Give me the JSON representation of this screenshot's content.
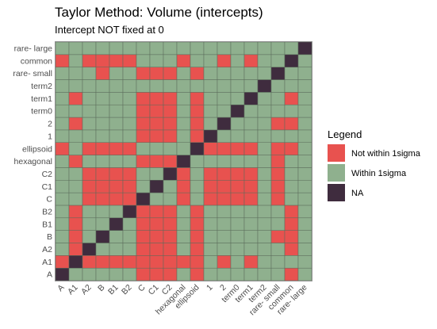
{
  "chart_data": {
    "type": "heatmap",
    "title": "Taylor Method: Volume (intercepts)",
    "subtitle": "Intercept NOT fixed at 0",
    "categories": [
      "A",
      "A1",
      "A2",
      "B",
      "B1",
      "B2",
      "C",
      "C1",
      "C2",
      "hexagonal",
      "ellipsoid",
      "1",
      "2",
      "term0",
      "term1",
      "term2",
      "rare- small",
      "common",
      "rare- large"
    ],
    "legend": {
      "title": "Legend",
      "position": "right",
      "entries": [
        {
          "label": "Not within 1sigma",
          "key": "N",
          "color": "#E8524F"
        },
        {
          "label": "Within 1sigma",
          "key": "W",
          "color": "#8FB08E"
        },
        {
          "label": "NA",
          "key": "X",
          "color": "#3F2C3E"
        }
      ]
    },
    "matrix": [
      "XWWWWWNNNWNWWWWWWNW",
      "NXNNNNNNNNNWNWNWWWW",
      "WNXWWWNNNWNWWWWWWNW",
      "WNWXWWNNNWNWWWWWNNW",
      "WNWWXWNNNWNWWWWWWNW",
      "WNWWWXNNNWNWWWWWWNW",
      "WWNNNNXWWNWNNNNWNWW",
      "WWNNNNWXWNWNNNNWNWW",
      "WWNNNNWWXNWNNNNWNWW",
      "WNWWWWNNNXWWWWWWNWW",
      "NWNNNNWWWWXNNNNWNNW",
      "WWWWWWNNNWNXWWWWWWW",
      "WNWWWWNNNWNWXWWWNNW",
      "WWWWWWNNNWNWWXWWWWW",
      "WNWWWWNNNWNWWWXWWNW",
      "WWWWWWWWWWWWWWWXWWW",
      "WWWNWWNNNWNWWWWWXWW",
      "NWNNNNWWWNWWNWNWWXW",
      "WWWWWWWWWWWWWWWWWWX"
    ]
  }
}
